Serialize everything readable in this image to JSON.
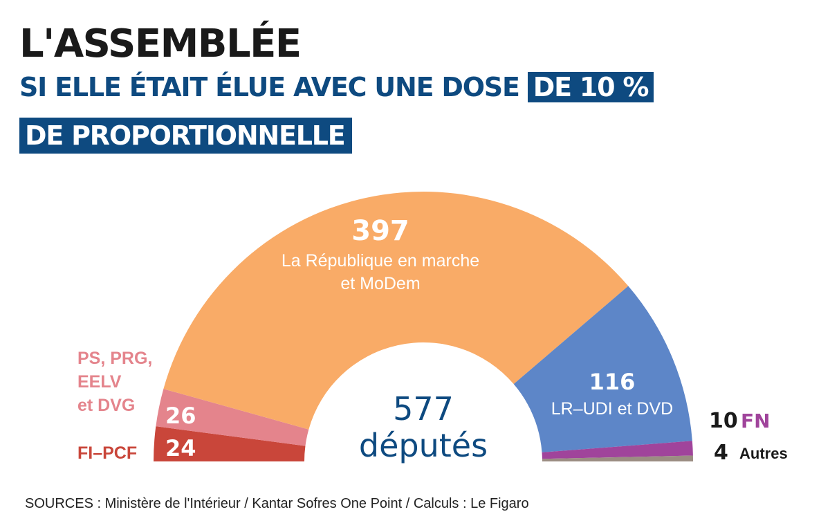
{
  "header": {
    "title": "L'ASSEMBLÉE",
    "subtitle_part1": "SI ELLE ÉTAIT ÉLUE AVEC UNE DOSE ",
    "subtitle_part2": "DE 10 %",
    "subtitle_line2": "DE PROPORTIONNELLE"
  },
  "chart_data": {
    "type": "pie",
    "variant": "half-donut",
    "total": 577,
    "center_value": "577",
    "center_label": "députés",
    "slices": [
      {
        "key": "fi",
        "label": "FI–PCF",
        "value": 24,
        "value_label": "24",
        "color": "#c9463a"
      },
      {
        "key": "ps",
        "label": "PS, PRG, EELV et DVG",
        "label_lines": [
          "PS, PRG,",
          "EELV",
          "et DVG"
        ],
        "value": 26,
        "value_label": "26",
        "color": "#e4848c"
      },
      {
        "key": "lrem",
        "label": "La République en marche et MoDem",
        "label_lines": [
          "La République en marche",
          "et MoDem"
        ],
        "value": 397,
        "value_label": "397",
        "color": "#f9ab67"
      },
      {
        "key": "lr",
        "label": "LR–UDI et DVD",
        "value": 116,
        "value_label": "116",
        "color": "#5d86c8"
      },
      {
        "key": "fn",
        "label": "FN",
        "value": 10,
        "value_label": "10",
        "color": "#a0449b"
      },
      {
        "key": "autres",
        "label": "Autres",
        "value": 4,
        "value_label": "4",
        "color": "#9b8d82"
      }
    ]
  },
  "footer": {
    "source": "SOURCES : Ministère de l'Intérieur / Kantar Sofres One Point /  Calculs : Le Figaro"
  }
}
